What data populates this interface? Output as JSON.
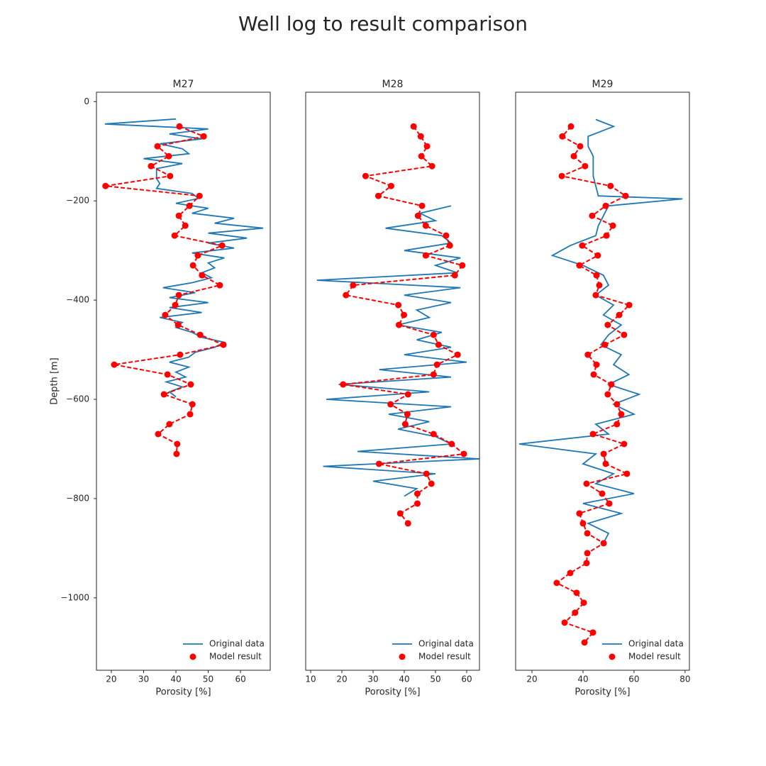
{
  "title": "Well log to result comparison",
  "chart_data": [
    {
      "type": "line",
      "title": "M27",
      "xlabel": "Porosity [%]",
      "ylabel": "Depth [m]",
      "xlim": [
        15.4,
        69.2
      ],
      "xticks": [
        20,
        30,
        40,
        50,
        60
      ],
      "ylim": [
        -1146,
        19
      ],
      "yticks": [
        0,
        {
          "value": -200,
          "label": "−200"
        },
        {
          "value": -400,
          "label": "−400"
        },
        {
          "value": -600,
          "label": "−600"
        },
        {
          "value": -800,
          "label": "−800"
        },
        {
          "value": -1000,
          "label": "−1000"
        }
      ],
      "legend": "lower right",
      "series": [
        {
          "name": "Original data",
          "color": "#1f77b4",
          "x": [
            40,
            18,
            50,
            38,
            48,
            35,
            42,
            44,
            30,
            42,
            34,
            34,
            34,
            35,
            34,
            45,
            47,
            40,
            50,
            45,
            58,
            52,
            67,
            50,
            62,
            50,
            58,
            45,
            55,
            50,
            52,
            48,
            51,
            45,
            36,
            46,
            38,
            50,
            38,
            48,
            35,
            42,
            40,
            45,
            48,
            55,
            52,
            46,
            44,
            38,
            44,
            40,
            43,
            37,
            42,
            38,
            40
          ],
          "y": [
            -35,
            -45,
            -55,
            -65,
            -75,
            -85,
            -95,
            -105,
            -115,
            -125,
            -135,
            -145,
            -155,
            -165,
            -175,
            -185,
            -195,
            -205,
            -215,
            -225,
            -235,
            -245,
            -255,
            -265,
            -275,
            -285,
            -295,
            -305,
            -315,
            -325,
            -335,
            -345,
            -355,
            -365,
            -375,
            -385,
            -395,
            -405,
            -415,
            -425,
            -435,
            -445,
            -455,
            -465,
            -475,
            -485,
            -495,
            -505,
            -515,
            -525,
            -535,
            -545,
            -555,
            -565,
            -575,
            -585,
            -595
          ]
        },
        {
          "name": "Model result",
          "color": "#ff0000",
          "linestyle": "dashed",
          "marker": true,
          "x": [
            41.1,
            48.6,
            34.3,
            37.8,
            32.3,
            38.2,
            18.2,
            47.3,
            44.2,
            40.9,
            42.9,
            39.6,
            54.3,
            46.8,
            45.3,
            48.1,
            53.6,
            40.9,
            39.8,
            36.7,
            40.7,
            47.5,
            54.7,
            41.3,
            20.9,
            37.4,
            44.6,
            36.3,
            45.1,
            44.4,
            38.0,
            34.5,
            40.4,
            40.2
          ],
          "y": [
            -50,
            -70,
            -90,
            -110,
            -130,
            -150,
            -170,
            -190,
            -210,
            -230,
            -250,
            -270,
            -290,
            -310,
            -330,
            -350,
            -370,
            -390,
            -410,
            -430,
            -450,
            -470,
            -490,
            -510,
            -530,
            -550,
            -570,
            -590,
            -610,
            -630,
            -650,
            -670,
            -690,
            -710
          ]
        }
      ]
    },
    {
      "type": "line",
      "title": "M28",
      "xlabel": "Porosity [%]",
      "xlim": [
        8.4,
        64.1
      ],
      "xticks": [
        10,
        20,
        30,
        40,
        50,
        60
      ],
      "ylim": [
        -1146,
        19
      ],
      "legend": "lower right",
      "series": [
        {
          "name": "Original data",
          "color": "#1f77b4",
          "x": [
            55,
            45,
            50,
            34,
            52,
            55,
            40,
            58,
            50,
            57,
            12,
            58,
            40,
            55,
            44,
            48,
            38,
            52,
            44,
            55,
            40,
            60,
            32,
            55,
            19,
            48,
            15,
            55,
            35,
            48,
            38,
            50,
            55,
            25,
            64,
            14,
            50,
            30,
            44,
            40
          ],
          "y": [
            -210,
            -225,
            -240,
            -255,
            -270,
            -285,
            -300,
            -315,
            -330,
            -345,
            -360,
            -375,
            -390,
            -405,
            -420,
            -435,
            -450,
            -465,
            -480,
            -495,
            -510,
            -525,
            -540,
            -555,
            -570,
            -585,
            -600,
            -615,
            -630,
            -645,
            -660,
            -675,
            -690,
            -705,
            -720,
            -735,
            -750,
            -765,
            -780,
            -795
          ]
        },
        {
          "name": "Model result",
          "color": "#ff0000",
          "linestyle": "dashed",
          "marker": true,
          "x": [
            43.0,
            45.3,
            47.3,
            45.5,
            48.9,
            27.6,
            35.8,
            31.7,
            45.7,
            44.4,
            46.9,
            53.4,
            54.6,
            46.9,
            58.6,
            56.2,
            23.6,
            21.3,
            38.1,
            39.9,
            38.3,
            49.4,
            51.0,
            57.1,
            50.5,
            49.4,
            20.4,
            41.2,
            35.6,
            41.0,
            40.3,
            49.4,
            55.2,
            59.1,
            31.9,
            47.1,
            48.7,
            44.2,
            44.2,
            38.7,
            41.2
          ],
          "y": [
            -50,
            -70,
            -90,
            -110,
            -130,
            -150,
            -170,
            -190,
            -210,
            -230,
            -250,
            -270,
            -290,
            -310,
            -330,
            -350,
            -370,
            -390,
            -410,
            -430,
            -450,
            -470,
            -490,
            -510,
            -530,
            -550,
            -570,
            -590,
            -610,
            -630,
            -650,
            -670,
            -690,
            -710,
            -730,
            -750,
            -770,
            -790,
            -810,
            -830,
            -850
          ]
        }
      ]
    },
    {
      "type": "line",
      "title": "M29",
      "xlabel": "Porosity [%]",
      "xlim": [
        13.6,
        81.7
      ],
      "xticks": [
        20,
        40,
        60,
        80
      ],
      "ylim": [
        -1146,
        19
      ],
      "legend": "lower right",
      "series": [
        {
          "name": "Original data",
          "color": "#1f77b4",
          "x": [
            45,
            52,
            42,
            42,
            44,
            44,
            44,
            45,
            46,
            79,
            50,
            48,
            46,
            45,
            35,
            28,
            40,
            48,
            50,
            45,
            52,
            48,
            55,
            50,
            47,
            55,
            52,
            58,
            50,
            62,
            52,
            60,
            45,
            50,
            15,
            45,
            40,
            52,
            45,
            60,
            40,
            55,
            42,
            50,
            48
          ],
          "y": [
            -36,
            -50,
            -70,
            -90,
            -110,
            -130,
            -150,
            -170,
            -190,
            -196,
            -210,
            -230,
            -250,
            -270,
            -290,
            -310,
            -330,
            -350,
            -370,
            -390,
            -410,
            -430,
            -450,
            -470,
            -490,
            -510,
            -530,
            -550,
            -570,
            -590,
            -610,
            -630,
            -650,
            -670,
            -690,
            -710,
            -730,
            -750,
            -770,
            -790,
            -810,
            -830,
            -850,
            -870,
            -890
          ]
        },
        {
          "name": "Model result",
          "color": "#ff0000",
          "linestyle": "dashed",
          "marker": true,
          "x": [
            35.3,
            31.9,
            38.9,
            36.4,
            40.8,
            31.7,
            50.8,
            56.7,
            48.9,
            43.6,
            51.7,
            49.2,
            39.7,
            45.8,
            38.6,
            45.3,
            46.4,
            45.0,
            58.1,
            54.2,
            49.7,
            56.1,
            48.6,
            41.9,
            45.3,
            44.2,
            51.1,
            49.7,
            53.3,
            55.0,
            53.3,
            43.9,
            56.1,
            48.1,
            48.9,
            57.2,
            41.4,
            47.5,
            50.3,
            38.6,
            40.0,
            41.7,
            48.1,
            41.7,
            41.4,
            35.0,
            29.7,
            37.5,
            40.3,
            36.9,
            32.8,
            43.9,
            40.6
          ],
          "y": [
            -50,
            -70,
            -90,
            -110,
            -130,
            -150,
            -170,
            -190,
            -210,
            -230,
            -250,
            -270,
            -290,
            -310,
            -330,
            -350,
            -370,
            -390,
            -410,
            -430,
            -450,
            -470,
            -490,
            -510,
            -530,
            -550,
            -570,
            -590,
            -610,
            -630,
            -650,
            -670,
            -690,
            -710,
            -730,
            -750,
            -770,
            -790,
            -810,
            -830,
            -850,
            -870,
            -890,
            -910,
            -930,
            -950,
            -970,
            -990,
            -1010,
            -1030,
            -1050,
            -1070,
            -1090
          ]
        }
      ]
    }
  ]
}
